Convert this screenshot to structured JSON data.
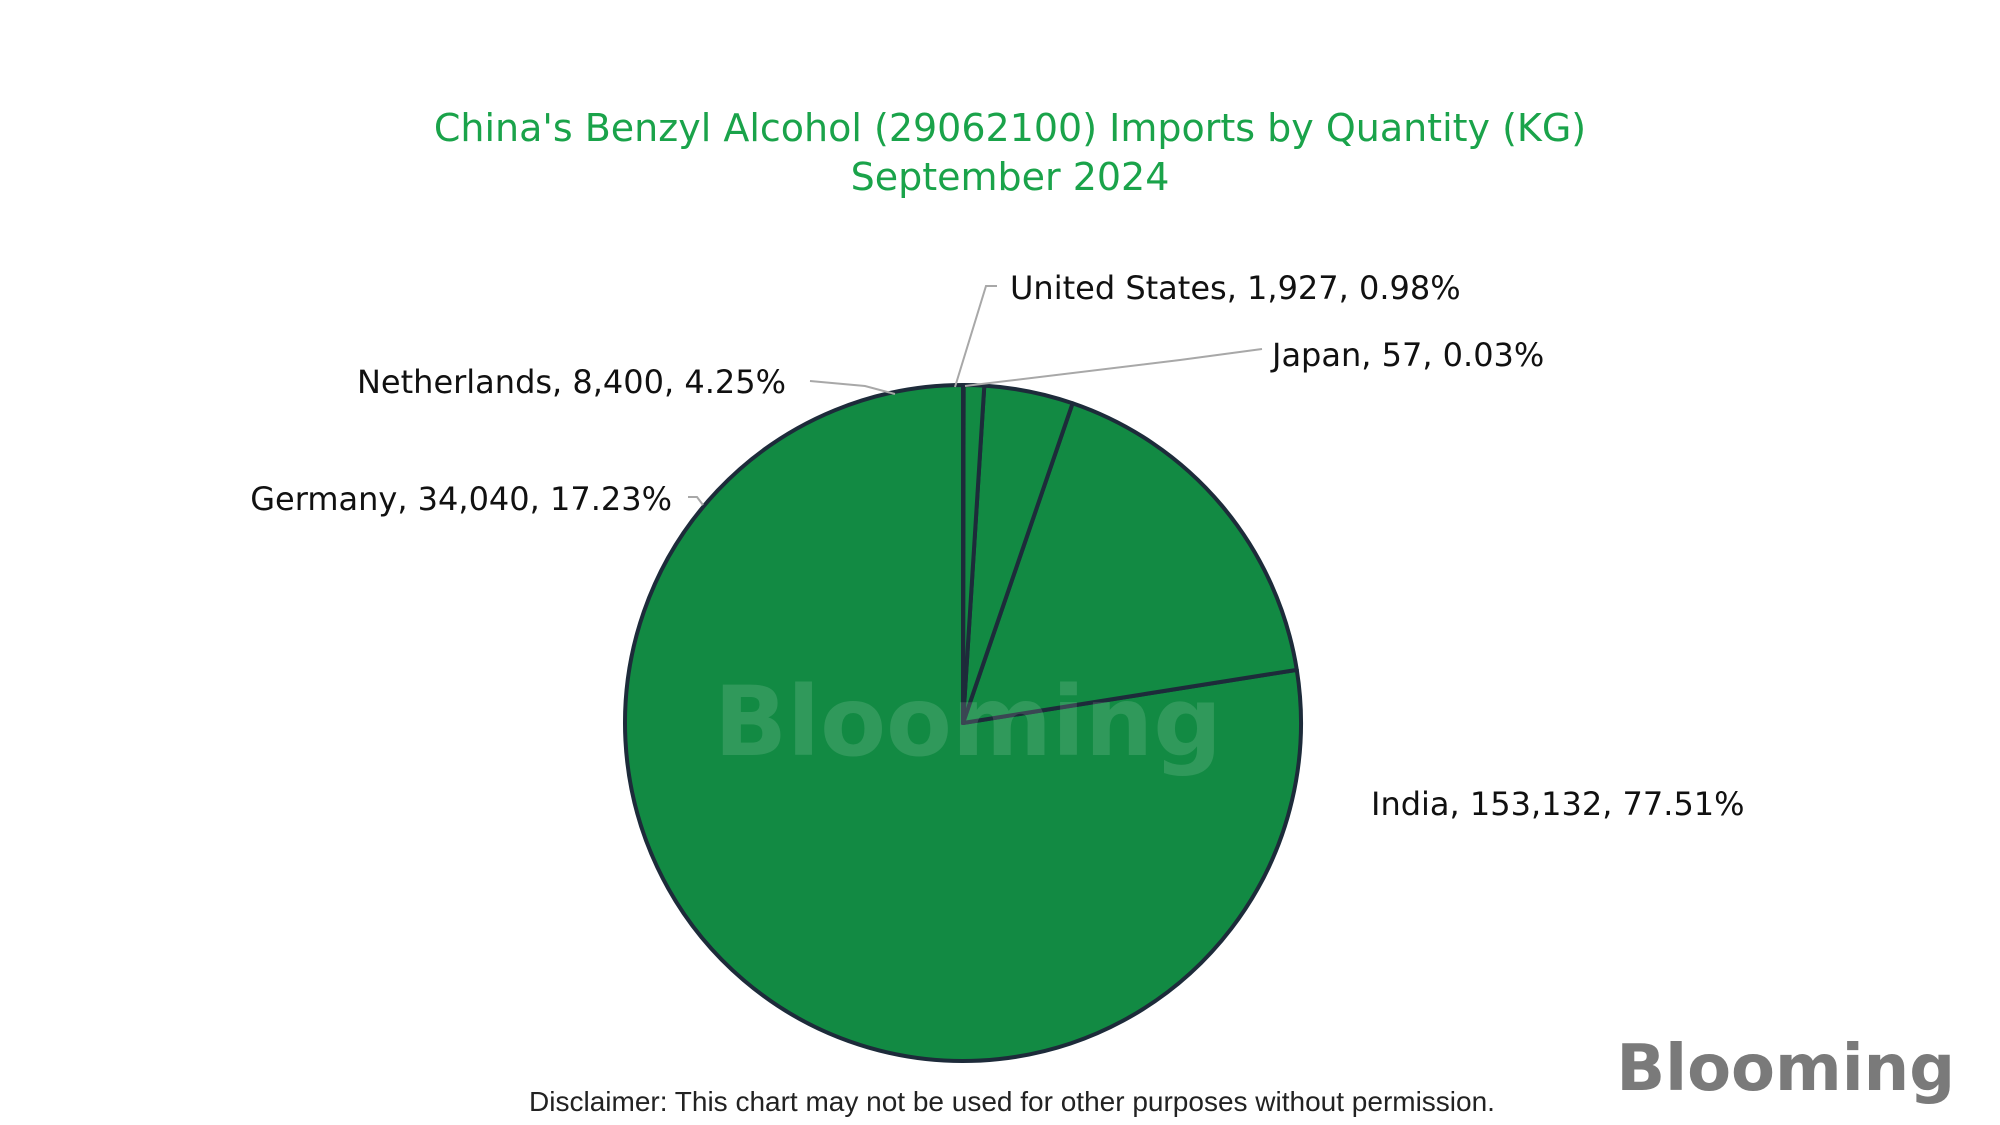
{
  "chart_data": {
    "type": "pie",
    "title": "China's Benzyl Alcohol (29062100) Imports by Quantity (KG)",
    "subtitle": "September 2024",
    "slices": [
      {
        "label": "India",
        "value": 153132,
        "percent": 77.51,
        "display": "India, 153,132, 77.51%"
      },
      {
        "label": "Germany",
        "value": 34040,
        "percent": 17.23,
        "display": "Germany, 34,040, 17.23%"
      },
      {
        "label": "Netherlands",
        "value": 8400,
        "percent": 4.25,
        "display": "Netherlands, 8,400, 4.25%"
      },
      {
        "label": "United States",
        "value": 1927,
        "percent": 0.98,
        "display": "United States, 1,927, 0.98%"
      },
      {
        "label": "Japan",
        "value": 57,
        "percent": 0.03,
        "display": "Japan, 57, 0.03%"
      }
    ],
    "slice_color": "#128a43",
    "edge_color": "#1d2b3a",
    "title_color": "#1aa34a"
  },
  "watermark": "Blooming",
  "logo": "Blooming",
  "disclaimer": "Disclaimer: This chart may not be used for other purposes without permission."
}
